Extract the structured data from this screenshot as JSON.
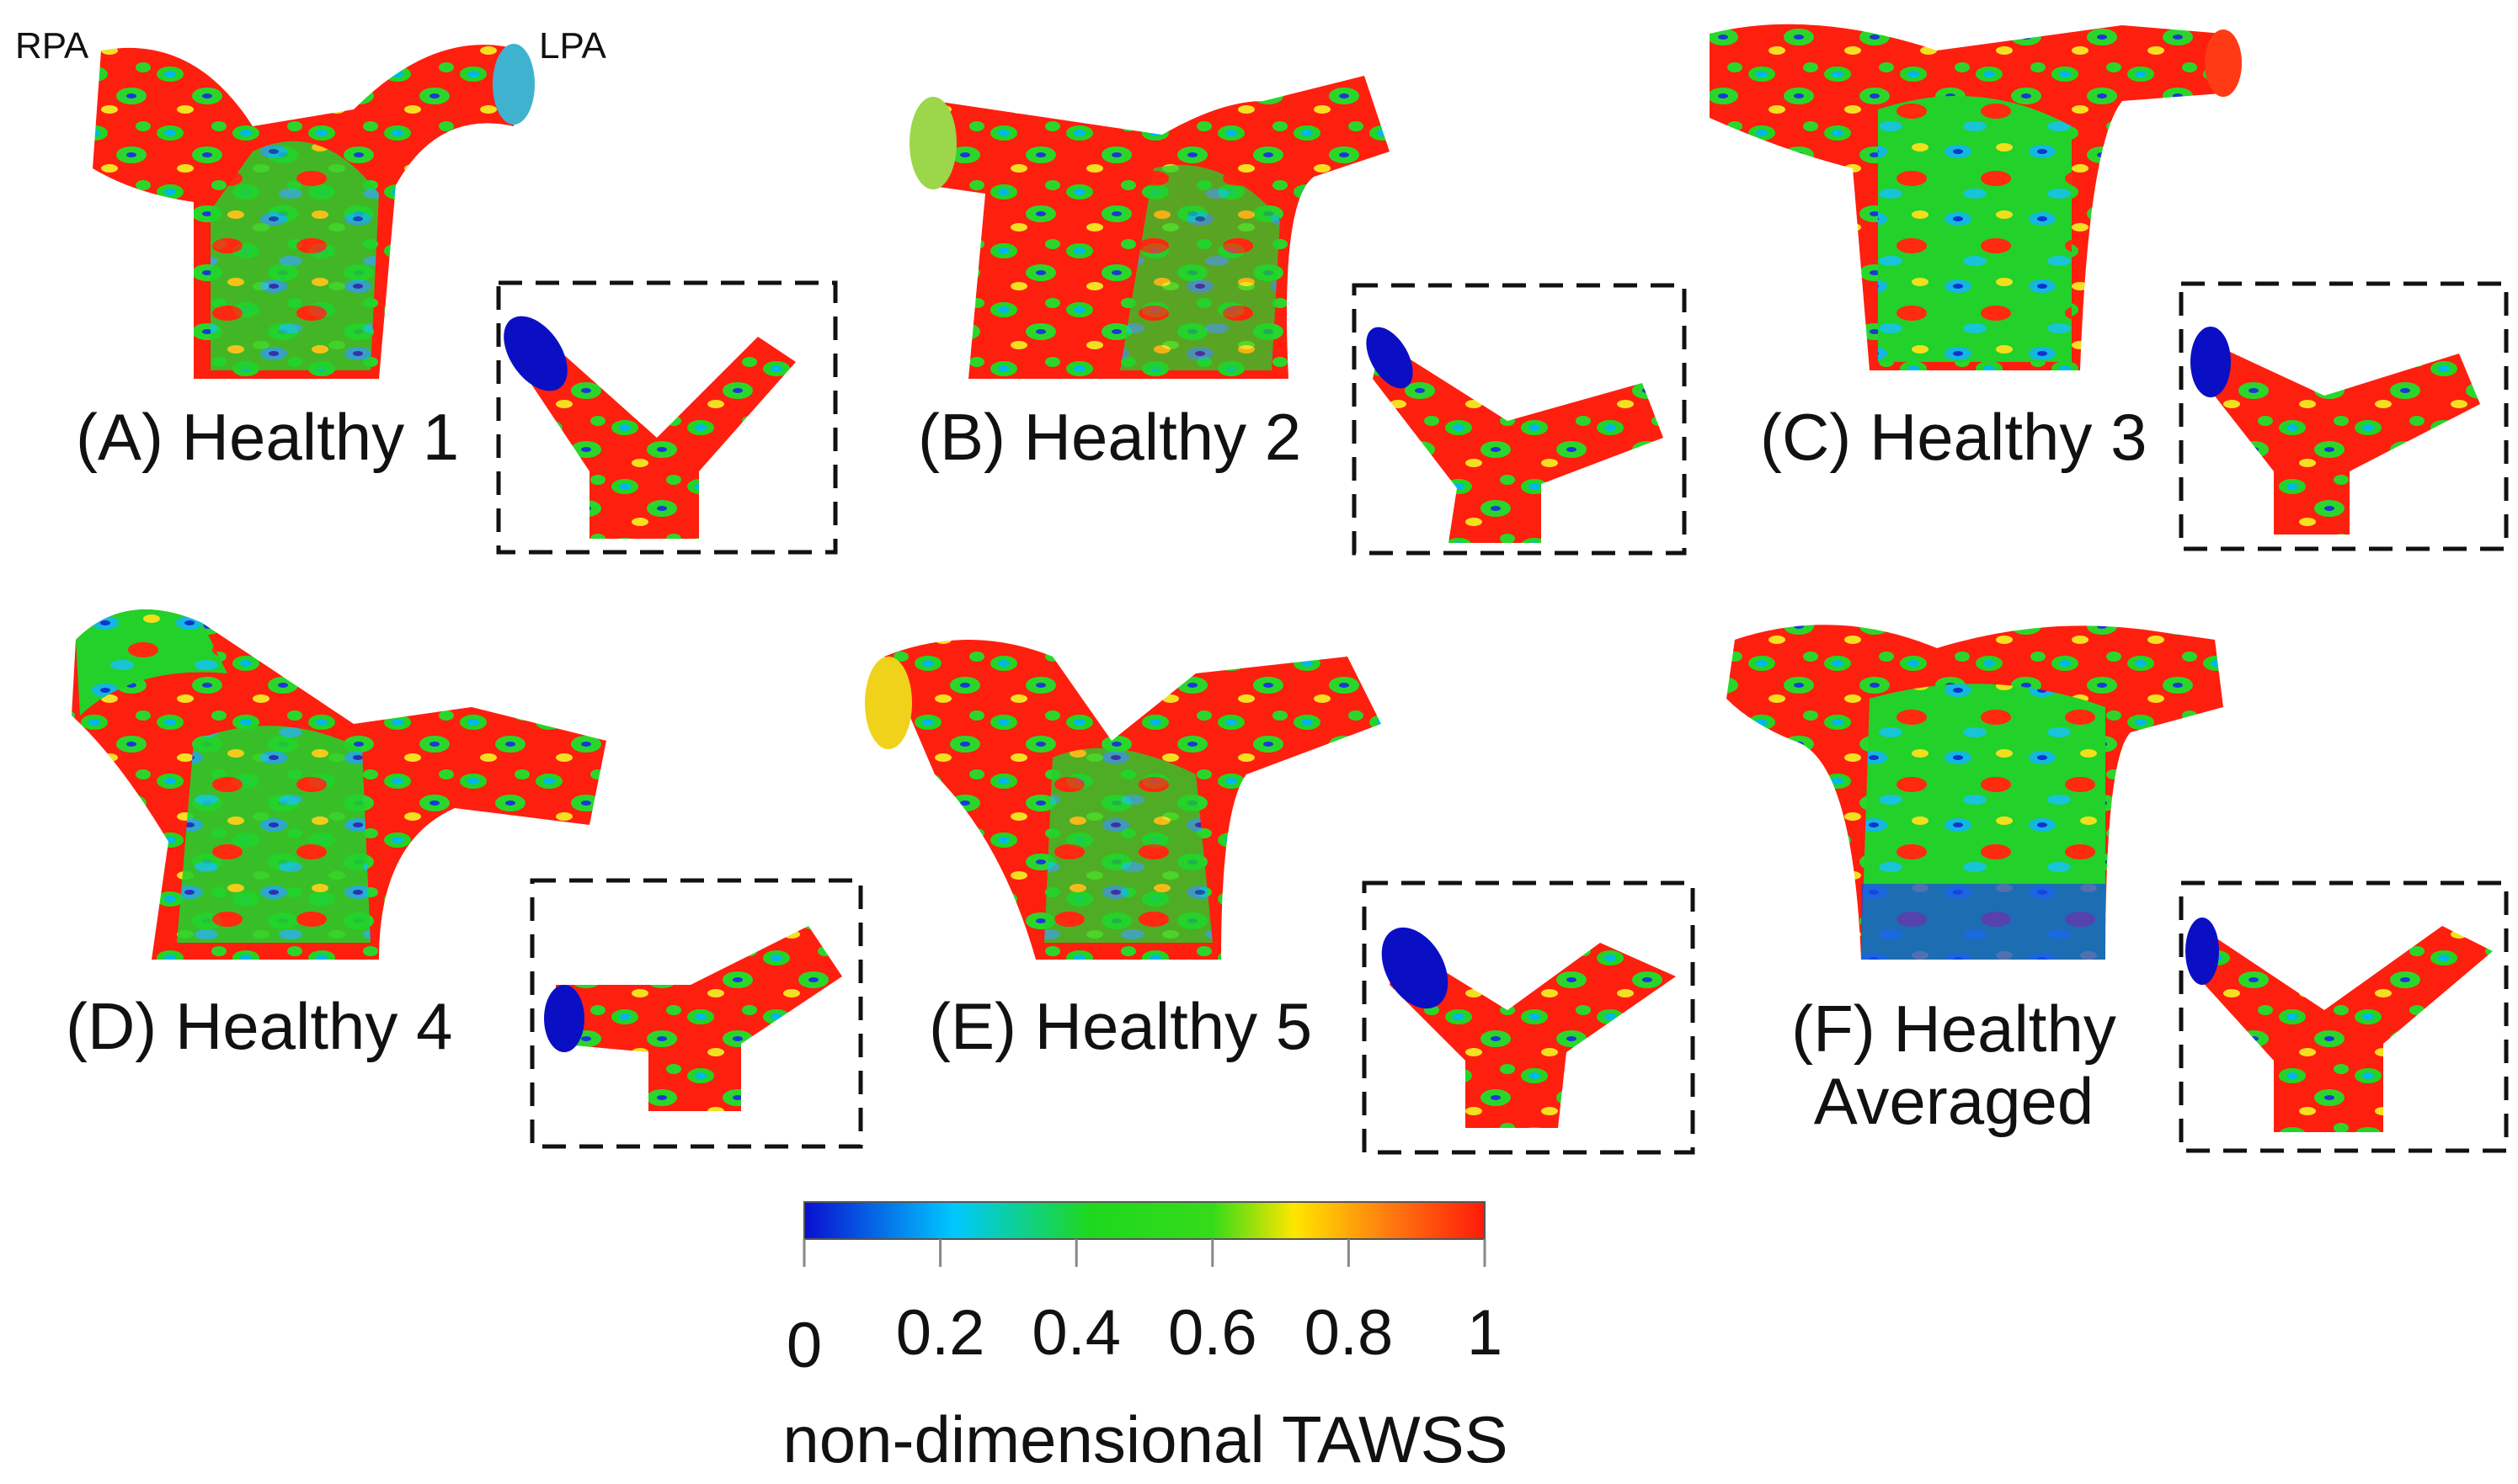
{
  "vessel_labels": {
    "right": "RPA",
    "left": "LPA"
  },
  "panels": [
    {
      "id": "A",
      "label": "(A) Healthy 1"
    },
    {
      "id": "B",
      "label": "(B) Healthy 2"
    },
    {
      "id": "C",
      "label": "(C) Healthy 3"
    },
    {
      "id": "D",
      "label": "(D) Healthy 4"
    },
    {
      "id": "E",
      "label": "(E) Healthy 5"
    },
    {
      "id": "F",
      "label_line1": "(F) Healthy",
      "label_line2": "Averaged"
    }
  ],
  "colorbar": {
    "title": "non-dimensional TAWSS",
    "ticks": [
      "0",
      "0.2",
      "0.4",
      "0.6",
      "0.8",
      "1"
    ],
    "range": [
      0,
      1
    ],
    "colors": {
      "min": "#0a0fd0",
      "low": "#00c8ff",
      "mid": "#1ed81e",
      "high": "#ffe600",
      "max": "#ff1a0a"
    }
  }
}
